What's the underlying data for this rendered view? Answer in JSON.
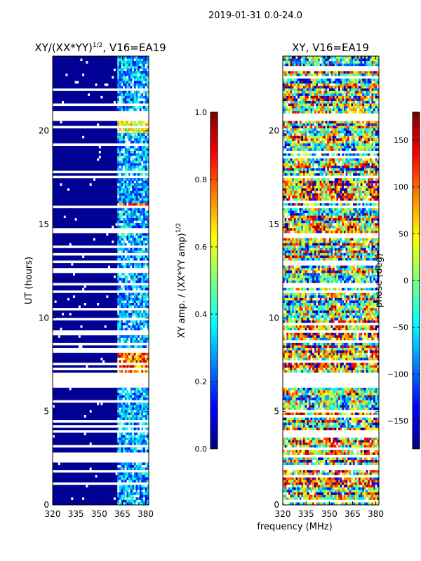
{
  "suptitle": "2019-01-31 0.0-24.0",
  "shared_xlabel": "frequency (MHz)",
  "colors": {
    "background": "#ffffff",
    "masked_value_color": "#ffffff",
    "frame": "#000000"
  },
  "chart_data": [
    {
      "type": "heatmap",
      "title_main": "XY/(XX*YY)",
      "title_sup": "1/2",
      "title_suffix": ", V16=EA19",
      "xlabel": "",
      "ylabel": "UT (hours)",
      "xlim": [
        320,
        382
      ],
      "ylim": [
        0,
        24
      ],
      "xticks": [
        320,
        335,
        350,
        365,
        380
      ],
      "yticks": [
        0,
        5,
        10,
        15,
        20
      ],
      "colormap": "jet",
      "z_description": "XY amplitude normalized by sqrt(XX*YY amp), mostly near 0 with bright channels near 362-382 MHz",
      "colorbar": {
        "label_main": "XY amp. / (XX*YY amp)",
        "label_sup": "1/2",
        "range": [
          0.0,
          1.0
        ],
        "ticks": [
          0.0,
          0.2,
          0.4,
          0.6,
          0.8,
          1.0
        ],
        "tick_labels": [
          "0.0",
          "0.2",
          "0.4",
          "0.6",
          "0.8",
          "1.0"
        ]
      }
    },
    {
      "type": "heatmap",
      "title_main": "XY, V16=EA19",
      "xlabel": "",
      "ylabel": "",
      "xlim": [
        320,
        382
      ],
      "ylim": [
        0,
        24
      ],
      "xticks": [
        320,
        335,
        350,
        365,
        380
      ],
      "yticks": [
        0,
        5,
        10,
        15,
        20
      ],
      "colormap": "jet",
      "z_description": "XY phase in degrees, noisy across band with vertical structure near 350-365 MHz",
      "colorbar": {
        "label_main": "phase (deg)",
        "range": [
          -180,
          180
        ],
        "ticks": [
          -150,
          -100,
          -50,
          0,
          50,
          100,
          150
        ],
        "tick_labels": [
          "−150",
          "−100",
          "−50",
          "0",
          "50",
          "100",
          "150"
        ]
      }
    }
  ]
}
